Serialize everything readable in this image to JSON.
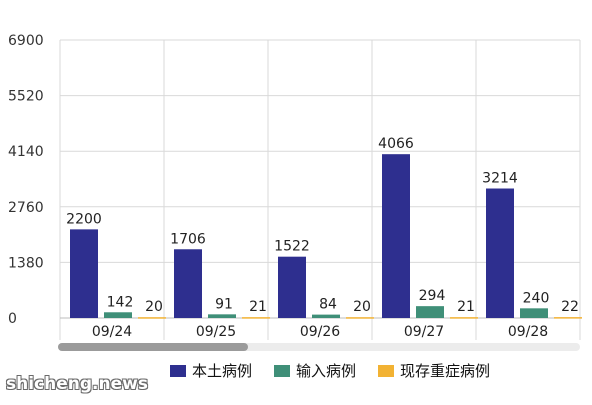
{
  "chart_data": {
    "type": "bar",
    "categories": [
      "09/24",
      "09/25",
      "09/26",
      "09/27",
      "09/28"
    ],
    "series": [
      {
        "name": "本土病例",
        "values": [
          2200,
          1706,
          1522,
          4066,
          3214
        ],
        "color": "#2e2f8f"
      },
      {
        "name": "输入病例",
        "values": [
          142,
          91,
          84,
          294,
          240
        ],
        "color": "#3f8f78"
      },
      {
        "name": "现存重症病例",
        "values": [
          20,
          21,
          20,
          21,
          22
        ],
        "color": "#f2b233"
      }
    ],
    "yticks": [
      0,
      1380,
      2760,
      4140,
      5520,
      6900
    ],
    "ylim": [
      0,
      6900
    ],
    "grid": true,
    "legend_position": "bottom",
    "title": "",
    "xlabel": "",
    "ylabel": ""
  },
  "watermark": "shicheng.news"
}
